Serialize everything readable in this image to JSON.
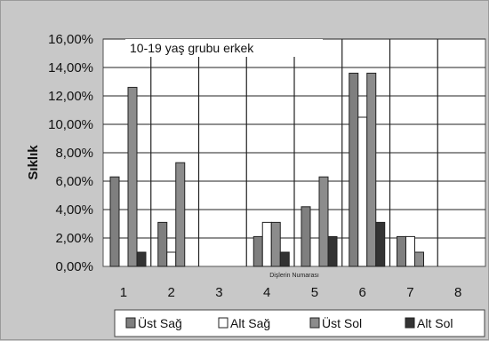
{
  "chart_data": {
    "type": "bar",
    "title": "10-19 yaş grubu erkek",
    "xlabel": "Dişlerin Numarası",
    "ylabel": "Sıklık",
    "categories": [
      "1",
      "2",
      "3",
      "4",
      "5",
      "6",
      "7",
      "8"
    ],
    "y_ticks": [
      "0,00%",
      "2,00%",
      "4,00%",
      "6,00%",
      "8,00%",
      "10,00%",
      "12,00%",
      "14,00%",
      "16,00%"
    ],
    "ylim": [
      0,
      16
    ],
    "grid": true,
    "legend_position": "bottom",
    "series": [
      {
        "name": "Üst Sağ",
        "values": [
          6.3,
          3.1,
          0,
          2.1,
          4.2,
          13.6,
          2.1,
          0
        ],
        "color": "#7f7f7f"
      },
      {
        "name": "Alt Sağ",
        "values": [
          0,
          1.0,
          0,
          3.1,
          0,
          10.5,
          2.1,
          0
        ],
        "color": "#ffffff"
      },
      {
        "name": "Üst Sol",
        "values": [
          12.6,
          7.3,
          0,
          3.1,
          6.3,
          13.6,
          1.0,
          0
        ],
        "color": "#8c8c8c"
      },
      {
        "name": "Alt Sol",
        "values": [
          1.0,
          0,
          0,
          1.0,
          2.1,
          3.1,
          0,
          0
        ],
        "color": "#333333"
      }
    ]
  }
}
